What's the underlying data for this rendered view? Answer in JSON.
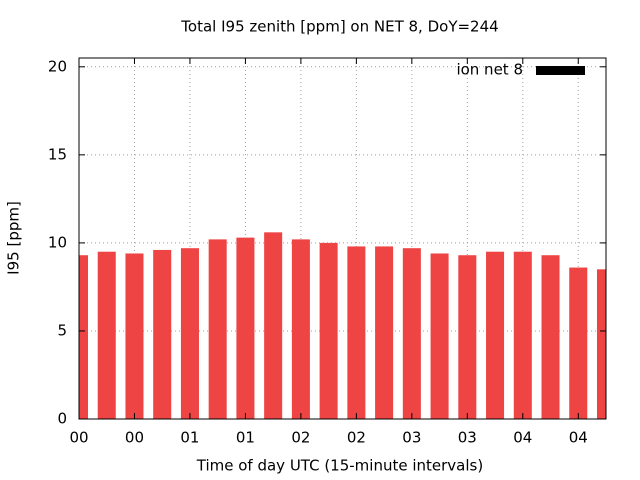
{
  "chart_data": {
    "type": "bar",
    "title": "Total I95 zenith [ppm] on NET 8, DoY=244",
    "x_label": "Time of day UTC (15-minute intervals)",
    "y_label": "I95 [ppm]",
    "x": [
      0,
      15,
      30,
      45,
      60,
      75,
      90,
      105,
      120,
      135,
      150,
      165,
      180,
      195,
      210,
      225,
      240,
      255,
      270,
      285
    ],
    "series": [
      {
        "name": "ion net 8",
        "color": "#ee4444",
        "values": [
          9.3,
          9.5,
          9.4,
          9.6,
          9.7,
          10.2,
          10.3,
          10.6,
          10.2,
          10.0,
          9.8,
          9.8,
          9.7,
          9.4,
          9.3,
          9.5,
          9.5,
          9.3,
          8.6,
          8.5
        ]
      }
    ],
    "xlim": [
      0,
      285
    ],
    "xticks": [
      {
        "value": 0,
        "label": "00"
      },
      {
        "value": 30,
        "label": "00"
      },
      {
        "value": 60,
        "label": "01"
      },
      {
        "value": 90,
        "label": "01"
      },
      {
        "value": 120,
        "label": "02"
      },
      {
        "value": 150,
        "label": "02"
      },
      {
        "value": 180,
        "label": "03"
      },
      {
        "value": 210,
        "label": "03"
      },
      {
        "value": 240,
        "label": "04"
      },
      {
        "value": 270,
        "label": "04"
      }
    ],
    "ylim": [
      0,
      20.5
    ],
    "yticks": [
      0,
      5,
      10,
      15,
      20
    ],
    "grid": true,
    "legend": "top-right"
  }
}
